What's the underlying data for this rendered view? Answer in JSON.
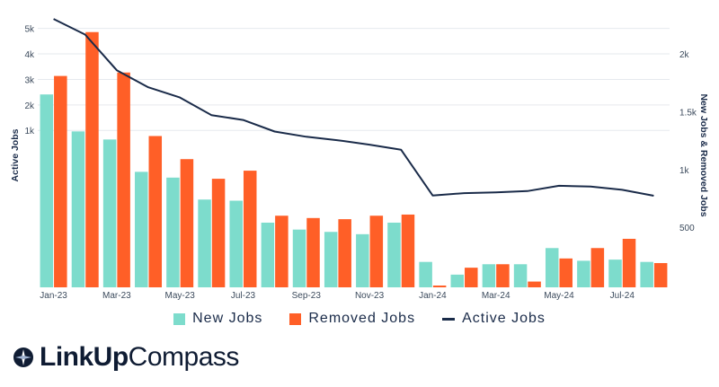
{
  "chart_data": {
    "type": "bar",
    "categories": [
      "Jan-23",
      "Feb-23",
      "Mar-23",
      "Apr-23",
      "May-23",
      "Jun-23",
      "Jul-23",
      "Aug-23",
      "Sep-23",
      "Oct-23",
      "Nov-23",
      "Dec-23",
      "Jan-24",
      "Feb-24",
      "Mar-24",
      "Apr-24",
      "May-24",
      "Jun-24",
      "Jul-24",
      "Aug-24"
    ],
    "x_tick_labels": [
      "Jan-23",
      "Mar-23",
      "May-23",
      "Jul-23",
      "Sep-23",
      "Nov-23",
      "Jan-24",
      "Mar-24",
      "May-24",
      "Jul-24"
    ],
    "series": [
      {
        "name": "New Jobs",
        "axis": "right",
        "color": "#7ddccc",
        "values": [
          1650,
          1330,
          1260,
          980,
          930,
          740,
          730,
          540,
          480,
          460,
          440,
          540,
          200,
          90,
          180,
          180,
          320,
          210,
          220,
          200
        ]
      },
      {
        "name": "Removed Jobs",
        "axis": "right",
        "color": "#ff5f27",
        "values": [
          1810,
          2190,
          1840,
          1290,
          1090,
          920,
          990,
          600,
          580,
          570,
          600,
          610,
          -20,
          150,
          180,
          30,
          230,
          320,
          400,
          190
        ]
      },
      {
        "name": "Active Jobs",
        "axis": "left",
        "type": "line",
        "color": "#1a2b49",
        "values": [
          5370,
          4760,
          3360,
          2690,
          2290,
          1600,
          1410,
          957,
          750,
          613,
          441,
          243,
          -1550,
          -1460,
          -1430,
          -1380,
          -1170,
          -1200,
          -1330,
          -1560
        ]
      }
    ],
    "left_axis": {
      "title": "Active Jobs",
      "ticks": [
        "1k",
        "2k",
        "3k",
        "4k",
        "5k"
      ],
      "tick_values": [
        1000,
        2000,
        3000,
        4000,
        5000
      ],
      "range": [
        -5153,
        5762
      ]
    },
    "right_axis": {
      "title": "New Jobs & Removed Jobs",
      "ticks": [
        "500",
        "1k",
        "1.5k",
        "2k"
      ],
      "tick_values": [
        500,
        1000,
        1500,
        2000
      ],
      "range": [
        -20,
        2390
      ]
    },
    "grid": true,
    "legend_position": "bottom"
  },
  "legend": [
    {
      "label": "New Jobs",
      "color": "#7ddccc",
      "kind": "box"
    },
    {
      "label": "Removed Jobs",
      "color": "#ff5f27",
      "kind": "box"
    },
    {
      "label": "Active Jobs",
      "color": "#1a2b49",
      "kind": "line"
    }
  ],
  "brand": {
    "bold": "LinkUp",
    "light": "Compass",
    "icon": "compass-icon"
  }
}
